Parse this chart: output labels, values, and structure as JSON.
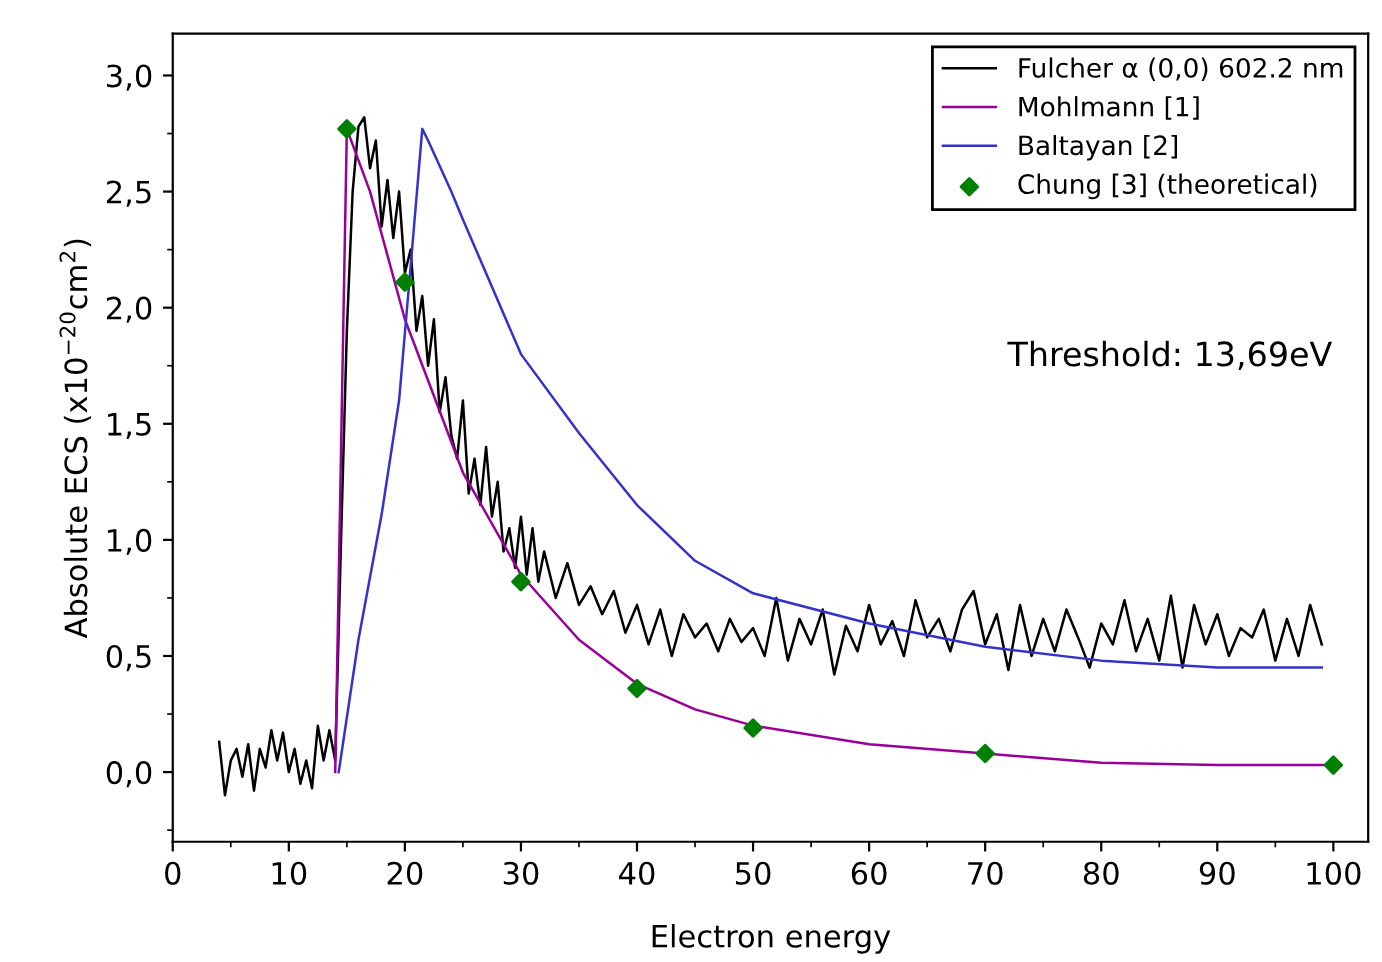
{
  "chart_data": {
    "type": "line",
    "xlabel": "Electron energy",
    "ylabel": "Absolute ECS (x10$^{−20}$cm$^{2}$)",
    "xlim": [
      0,
      103
    ],
    "xticks": [
      0,
      10,
      20,
      30,
      40,
      50,
      60,
      70,
      80,
      90,
      100
    ],
    "ylim": [
      -0.3,
      3.18
    ],
    "yticks": [
      {
        "value": 0,
        "label": "0,0"
      },
      {
        "value": 0.5,
        "label": "0,5"
      },
      {
        "value": 1,
        "label": "1,0"
      },
      {
        "value": 1.5,
        "label": "1,5"
      },
      {
        "value": 2,
        "label": "2,0"
      },
      {
        "value": 2.5,
        "label": "2,5"
      },
      {
        "value": 3,
        "label": "3,0"
      }
    ],
    "grid": false,
    "legend": "top right",
    "annotations": [
      "Threshold: 13,69eV"
    ],
    "series": [
      {
        "name": "Fulcher α (0,0) 602.2 nm",
        "color": "#000000",
        "x": [
          4,
          4.5,
          5,
          5.5,
          6,
          6.5,
          7,
          7.5,
          8,
          8.5,
          9,
          9.5,
          10,
          10.5,
          11,
          11.5,
          12,
          12.5,
          13,
          13.5,
          14,
          14.5,
          15,
          15.5,
          16,
          16.5,
          17,
          17.5,
          18,
          18.5,
          19,
          19.5,
          20,
          20.5,
          21,
          21.5,
          22,
          22.5,
          23,
          23.5,
          24,
          24.5,
          25,
          25.5,
          26,
          26.5,
          27,
          27.5,
          28,
          28.5,
          29,
          29.5,
          30,
          30.5,
          31,
          31.5,
          32,
          33,
          34,
          35,
          36,
          37,
          38,
          39,
          40,
          41,
          42,
          43,
          44,
          45,
          46,
          47,
          48,
          49,
          50,
          51,
          52,
          53,
          54,
          55,
          56,
          57,
          58,
          59,
          60,
          61,
          62,
          63,
          64,
          65,
          66,
          67,
          68,
          69,
          70,
          71,
          72,
          73,
          74,
          75,
          76,
          77,
          78,
          79,
          80,
          81,
          82,
          83,
          84,
          85,
          86,
          87,
          88,
          89,
          90,
          91,
          92,
          93,
          94,
          95,
          96,
          97,
          98,
          99
        ],
        "values": [
          0.13,
          -0.1,
          0.05,
          0.1,
          -0.02,
          0.12,
          -0.08,
          0.1,
          0.02,
          0.18,
          0.05,
          0.17,
          0.0,
          0.1,
          -0.05,
          0.05,
          -0.07,
          0.2,
          0.05,
          0.18,
          0.05,
          1.0,
          1.9,
          2.5,
          2.78,
          2.82,
          2.6,
          2.72,
          2.35,
          2.55,
          2.3,
          2.5,
          2.15,
          2.25,
          1.9,
          2.05,
          1.75,
          1.95,
          1.55,
          1.7,
          1.45,
          1.35,
          1.6,
          1.2,
          1.35,
          1.15,
          1.4,
          1.1,
          1.25,
          0.95,
          1.05,
          0.88,
          1.1,
          0.85,
          1.05,
          0.82,
          0.95,
          0.75,
          0.9,
          0.72,
          0.8,
          0.68,
          0.78,
          0.6,
          0.72,
          0.55,
          0.7,
          0.5,
          0.68,
          0.58,
          0.64,
          0.52,
          0.66,
          0.56,
          0.62,
          0.5,
          0.75,
          0.48,
          0.66,
          0.55,
          0.7,
          0.42,
          0.63,
          0.52,
          0.72,
          0.55,
          0.65,
          0.5,
          0.74,
          0.58,
          0.66,
          0.52,
          0.7,
          0.78,
          0.55,
          0.68,
          0.44,
          0.72,
          0.5,
          0.66,
          0.52,
          0.7,
          0.58,
          0.45,
          0.64,
          0.55,
          0.74,
          0.52,
          0.66,
          0.48,
          0.76,
          0.45,
          0.72,
          0.55,
          0.68,
          0.5,
          0.62,
          0.58,
          0.7,
          0.48,
          0.66,
          0.5,
          0.72,
          0.55
        ]
      },
      {
        "name": "Mohlmann [1]",
        "color": "#990099",
        "x": [
          14,
          15,
          17,
          20,
          25,
          30,
          35,
          40,
          45,
          50,
          60,
          70,
          80,
          90,
          100
        ],
        "values": [
          0.0,
          2.77,
          2.5,
          1.95,
          1.29,
          0.85,
          0.57,
          0.38,
          0.27,
          0.2,
          0.12,
          0.08,
          0.04,
          0.03,
          0.03
        ]
      },
      {
        "name": "Baltayan [2]",
        "color": "#3333cc",
        "x": [
          14.3,
          16,
          18,
          19.5,
          20.5,
          21.5,
          22,
          24,
          25,
          30,
          35,
          40,
          45,
          50,
          60,
          70,
          80,
          90,
          99
        ],
        "values": [
          0.0,
          0.57,
          1.11,
          1.6,
          2.18,
          2.77,
          2.72,
          2.5,
          2.38,
          1.8,
          1.46,
          1.15,
          0.91,
          0.77,
          0.64,
          0.54,
          0.48,
          0.45,
          0.45
        ]
      },
      {
        "name": "Chung [3] (theoretical)",
        "color": "#008000",
        "type": "scatter",
        "marker": "diamond",
        "x": [
          15,
          20,
          30,
          40,
          50,
          70,
          100
        ],
        "values": [
          2.77,
          2.11,
          0.82,
          0.36,
          0.19,
          0.08,
          0.03
        ]
      }
    ]
  }
}
